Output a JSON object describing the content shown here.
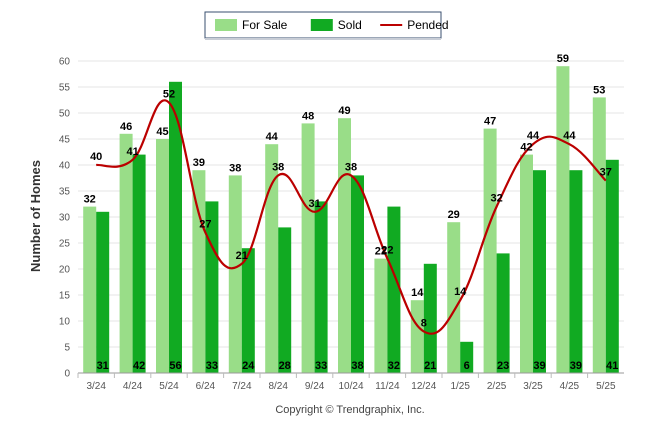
{
  "chart_data": {
    "type": "bar",
    "ylabel": "Number of Homes",
    "ylim": [
      0,
      60
    ],
    "ytick_step": 5,
    "grid": true,
    "legend_position": "top-center",
    "categories": [
      "3/24",
      "4/24",
      "5/24",
      "6/24",
      "7/24",
      "8/24",
      "9/24",
      "10/24",
      "11/24",
      "12/24",
      "1/25",
      "2/25",
      "3/25",
      "4/25",
      "5/25"
    ],
    "series": [
      {
        "name": "For Sale",
        "kind": "bar",
        "color": "#99dd88",
        "values": [
          32,
          46,
          45,
          39,
          38,
          44,
          48,
          49,
          22,
          14,
          29,
          47,
          42,
          59,
          53
        ]
      },
      {
        "name": "Sold",
        "kind": "bar",
        "color": "#11aa22",
        "values": [
          31,
          42,
          56,
          33,
          24,
          28,
          33,
          38,
          32,
          21,
          6,
          23,
          39,
          39,
          41
        ]
      },
      {
        "name": "Pended",
        "kind": "line",
        "color": "#bb0000",
        "values": [
          40,
          41,
          52,
          27,
          21,
          38,
          31,
          38,
          22,
          8,
          14,
          32,
          44,
          44,
          37
        ]
      }
    ]
  },
  "credit": "Copyright © Trendgraphix, Inc."
}
